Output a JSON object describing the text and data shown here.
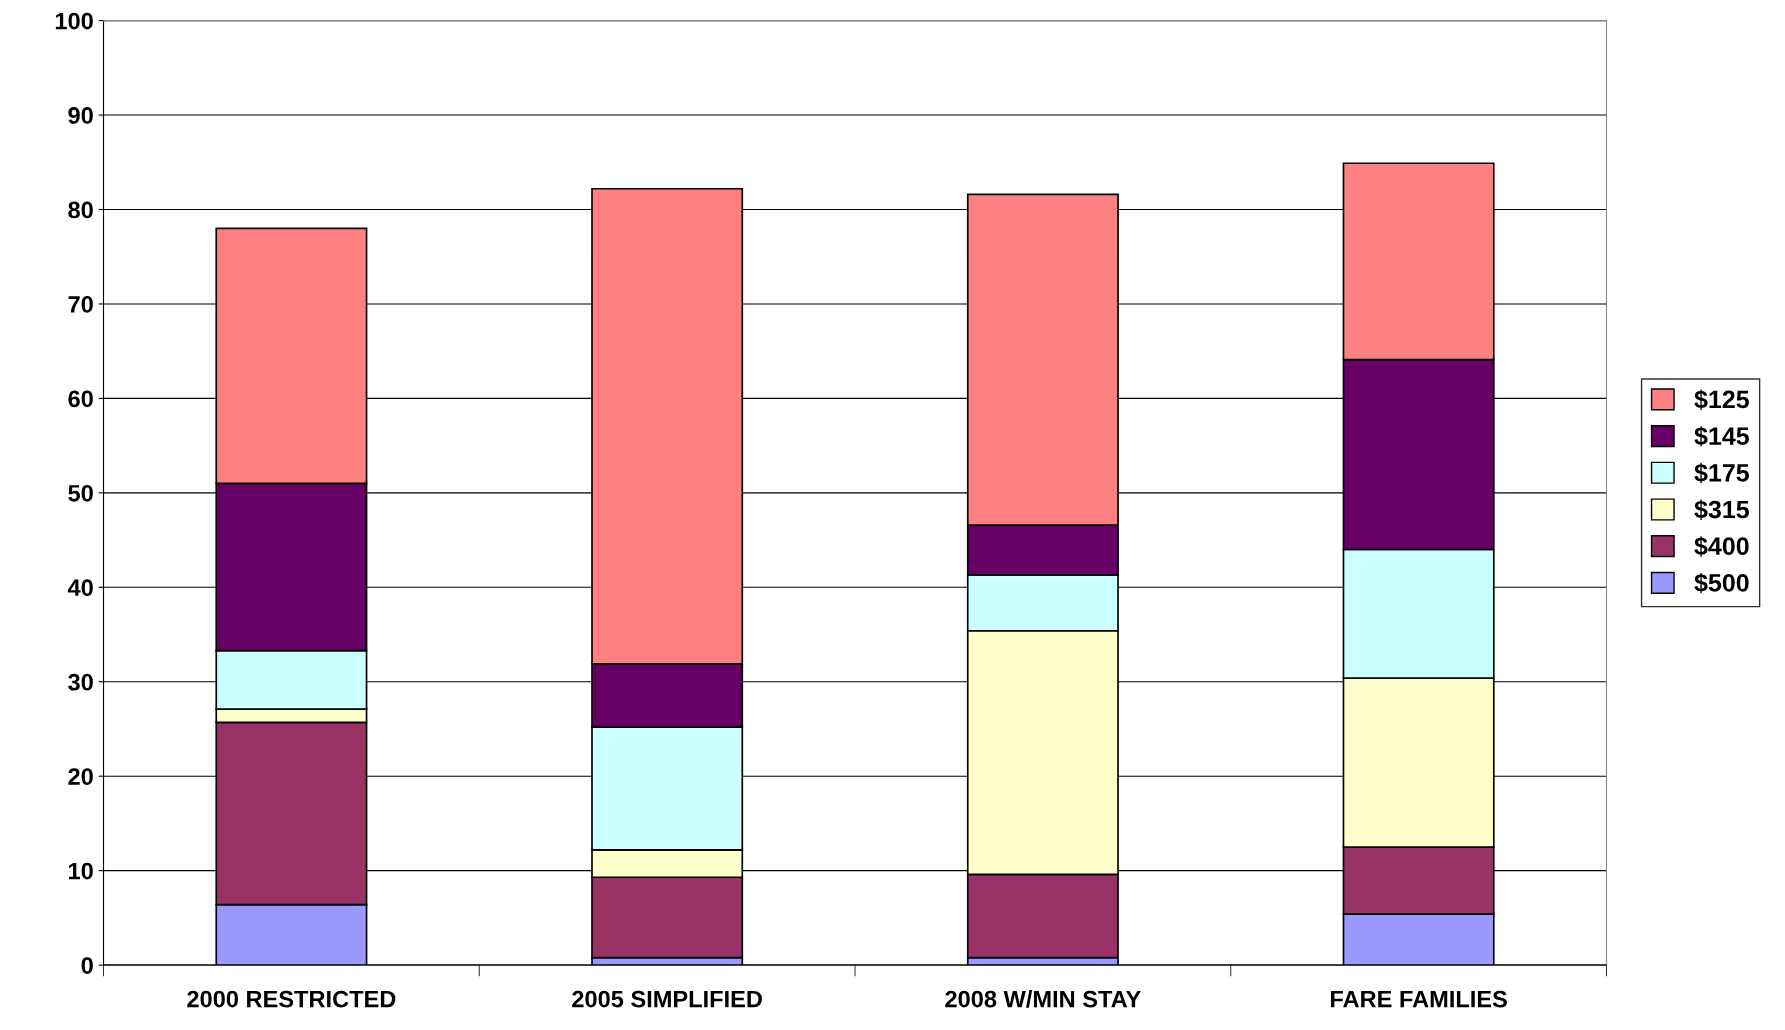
{
  "chart_data": {
    "type": "bar",
    "stacked": true,
    "categories": [
      "2000 RESTRICTED",
      "2005 SIMPLIFIED",
      "2008 W/MIN STAY",
      "FARE FAMILIES"
    ],
    "series": [
      {
        "name": "$500",
        "color": "#9999ff",
        "values": [
          6.4,
          0.8,
          0.8,
          5.4
        ]
      },
      {
        "name": "$400",
        "color": "#993366",
        "values": [
          19.3,
          8.5,
          8.8,
          7.1
        ]
      },
      {
        "name": "$315",
        "color": "#ffffcc",
        "values": [
          1.4,
          2.9,
          25.8,
          17.9
        ]
      },
      {
        "name": "$175",
        "color": "#ccffff",
        "values": [
          6.2,
          13.0,
          5.9,
          13.6
        ]
      },
      {
        "name": "$145",
        "color": "#660066",
        "values": [
          17.7,
          6.7,
          5.3,
          20.1
        ]
      },
      {
        "name": "$125",
        "color": "#ff8080",
        "values": [
          27.0,
          50.3,
          35.0,
          20.8
        ]
      }
    ],
    "ylim": [
      0,
      100
    ],
    "yticks": [
      0,
      10,
      20,
      30,
      40,
      50,
      60,
      70,
      80,
      90,
      100
    ],
    "grid": "y",
    "legend": "right"
  }
}
